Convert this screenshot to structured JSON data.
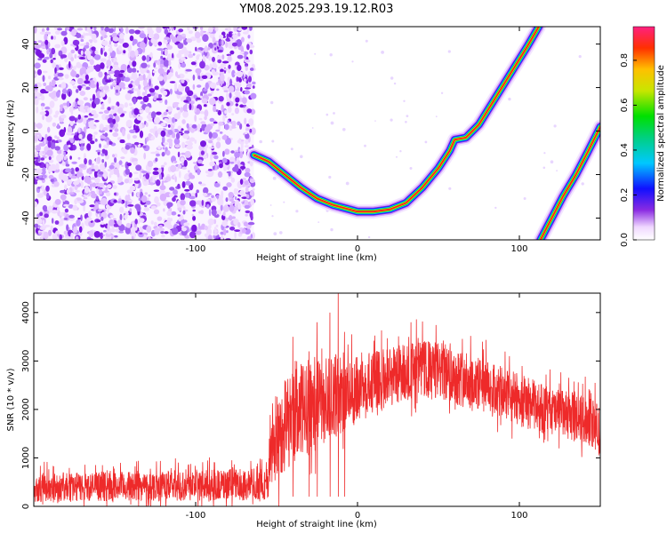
{
  "title": "YM08.2025.293.19.12.R03",
  "colors": {
    "snr_line": "#ee2a2a",
    "ridge_core": "#ff2020",
    "noise": "#7a22e6"
  },
  "chart_data": [
    {
      "type": "heatmap",
      "xlabel": "Height of straight line (km)",
      "ylabel": "Frequency (Hz)",
      "xlim": [
        -200,
        150
      ],
      "ylim": [
        -50,
        48
      ],
      "xticks": [
        -100,
        0,
        100
      ],
      "xtick_labels": [
        "-100",
        "0",
        "100"
      ],
      "yticks": [
        -40,
        -20,
        0,
        20,
        40
      ],
      "ytick_labels": [
        "-40",
        "-20",
        "0",
        "20",
        "40"
      ],
      "noise_region_x": [
        -200,
        -64
      ],
      "ridges": [
        {
          "points": [
            [
              -64,
              -11
            ],
            [
              -55,
              -14
            ],
            [
              -45,
              -20
            ],
            [
              -35,
              -26
            ],
            [
              -25,
              -31
            ],
            [
              -15,
              -34
            ],
            [
              -5,
              -36
            ],
            [
              0,
              -37
            ],
            [
              10,
              -37
            ],
            [
              20,
              -36
            ],
            [
              30,
              -33
            ],
            [
              40,
              -26
            ],
            [
              50,
              -17
            ],
            [
              57,
              -9
            ],
            [
              60,
              -4
            ],
            [
              67,
              -3
            ],
            [
              75,
              3
            ],
            [
              85,
              15
            ],
            [
              95,
              27
            ],
            [
              105,
              39
            ],
            [
              112,
              48
            ]
          ]
        },
        {
          "points": [
            [
              113,
              -50
            ],
            [
              120,
              -40
            ],
            [
              127,
              -30
            ],
            [
              135,
              -20
            ],
            [
              142,
              -10
            ],
            [
              148,
              -1
            ],
            [
              150,
              2
            ]
          ]
        }
      ],
      "colorbar": {
        "label": "Normalized spectral amplitude",
        "range": [
          0,
          0.95
        ],
        "ticks": [
          0.0,
          0.2,
          0.4,
          0.6,
          0.8
        ],
        "tick_labels": [
          "0.0",
          "0.2",
          "0.4",
          "0.6",
          "0.8"
        ]
      }
    },
    {
      "type": "line",
      "xlabel": "Height of straight line (km)",
      "ylabel": "SNR (10 * v/v)",
      "xlim": [
        -200,
        150
      ],
      "ylim": [
        0,
        4400
      ],
      "xticks": [
        -100,
        0,
        100
      ],
      "xtick_labels": [
        "-100",
        "0",
        "100"
      ],
      "yticks": [
        0,
        1000,
        2000,
        3000,
        4000
      ],
      "ytick_labels": [
        "0",
        "1000",
        "2000",
        "3000",
        "4000"
      ],
      "envelope": {
        "x": [
          -200,
          -150,
          -100,
          -70,
          -55,
          -54,
          -45,
          -30,
          -20,
          -12,
          -5,
          0,
          10,
          20,
          30,
          40,
          50,
          60,
          80,
          100,
          120,
          140,
          148,
          150
        ],
        "mid": [
          390,
          410,
          430,
          450,
          460,
          1200,
          1700,
          2050,
          2200,
          2300,
          2350,
          2400,
          2550,
          2700,
          2780,
          2830,
          2800,
          2700,
          2450,
          2200,
          1950,
          1800,
          1650,
          1400
        ],
        "spread": [
          300,
          300,
          320,
          330,
          340,
          900,
          1000,
          1000,
          900,
          850,
          700,
          700,
          650,
          650,
          600,
          600,
          600,
          600,
          550,
          550,
          500,
          500,
          500,
          600
        ]
      },
      "spikes": [
        [
          -40,
          3500
        ],
        [
          -30,
          3200
        ],
        [
          -25,
          3800
        ],
        [
          -17,
          4000
        ],
        [
          -12,
          4400
        ],
        [
          -8,
          3600
        ]
      ]
    }
  ]
}
